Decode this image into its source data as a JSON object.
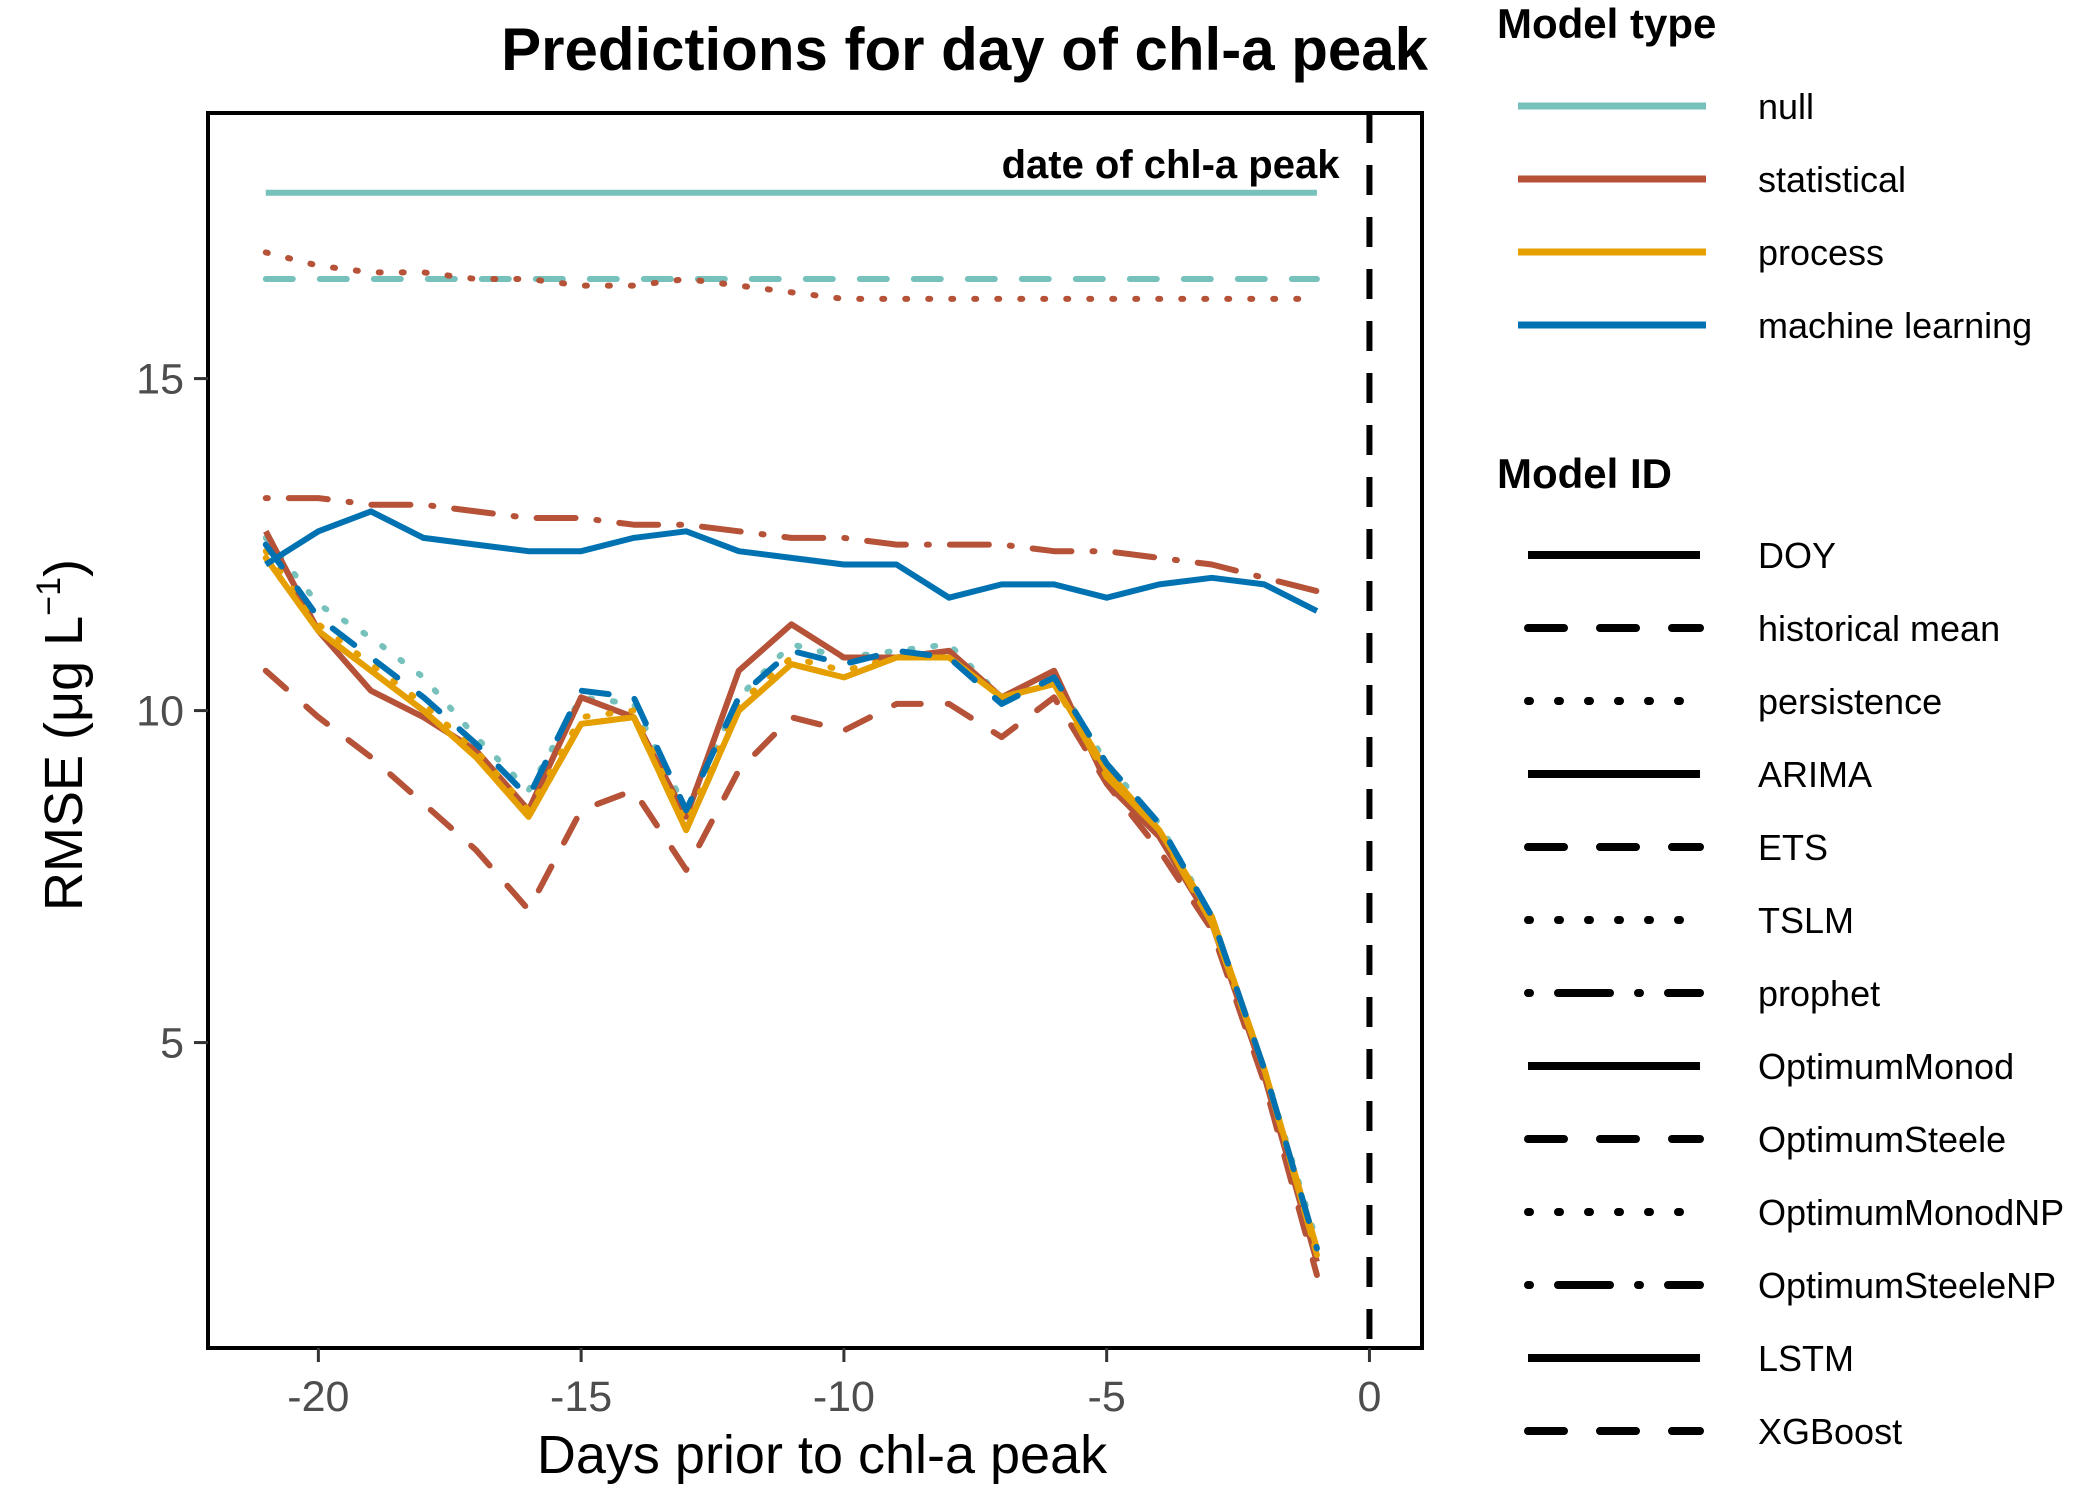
{
  "chart_data": {
    "type": "line",
    "title": "Predictions for day of chl-a peak",
    "xlabel": "Days prior to chl-a peak",
    "ylabel": "RMSE (μg L",
    "ylabel_exponent": "−1",
    "ylabel_close": ")",
    "xlim": [
      -22.1,
      1.0
    ],
    "ylim": [
      0.4,
      19.0
    ],
    "xticks": [
      -20,
      -15,
      -10,
      -5,
      0
    ],
    "xtick_labels": [
      "-20",
      "-15",
      "-10",
      "-5",
      "0"
    ],
    "yticks": [
      5,
      10,
      15
    ],
    "ytick_labels": [
      "5",
      "10",
      "15"
    ],
    "grid": false,
    "legend_position": "right",
    "annotation": {
      "text": "date of chl-a peak",
      "x": 0
    },
    "vline": {
      "x": 0,
      "linetype": "dashed",
      "color": "#000000"
    },
    "x": [
      -21,
      -20,
      -19,
      -18,
      -17,
      -16,
      -15,
      -14,
      -13,
      -12,
      -11,
      -10,
      -9,
      -8,
      -7,
      -6,
      -5,
      -4,
      -3,
      -2,
      -1
    ],
    "series": [
      {
        "name": "DOY",
        "type": "null",
        "color": "#76C1BB",
        "linetype": "solid",
        "values": [
          17.8,
          17.8,
          17.8,
          17.8,
          17.8,
          17.8,
          17.8,
          17.8,
          17.8,
          17.8,
          17.8,
          17.8,
          17.8,
          17.8,
          17.8,
          17.8,
          17.8,
          17.8,
          17.8,
          17.8,
          17.8
        ]
      },
      {
        "name": "historical mean",
        "type": "null",
        "color": "#76C1BB",
        "linetype": "dashed",
        "values": [
          16.5,
          16.5,
          16.5,
          16.5,
          16.5,
          16.5,
          16.5,
          16.5,
          16.5,
          16.5,
          16.5,
          16.5,
          16.5,
          16.5,
          16.5,
          16.5,
          16.5,
          16.5,
          16.5,
          16.5,
          16.5
        ]
      },
      {
        "name": "persistence",
        "type": "null",
        "color": "#76C1BB",
        "linetype": "dotted",
        "values": [
          12.6,
          11.6,
          11.1,
          10.5,
          9.6,
          8.8,
          10.2,
          10.1,
          8.5,
          10.2,
          11.0,
          10.8,
          10.9,
          11.0,
          10.2,
          10.5,
          9.2,
          8.3,
          6.9,
          4.6,
          2.0
        ]
      },
      {
        "name": "ARIMA",
        "type": "statistical",
        "color": "#B55237",
        "linetype": "solid",
        "values": [
          12.7,
          11.2,
          10.3,
          9.9,
          9.4,
          8.5,
          10.2,
          9.9,
          8.4,
          10.6,
          11.3,
          10.8,
          10.8,
          10.9,
          10.2,
          10.6,
          8.9,
          8.1,
          6.8,
          4.5,
          1.7
        ]
      },
      {
        "name": "ETS",
        "type": "statistical",
        "color": "#B55237",
        "linetype": "dashed",
        "values": [
          10.6,
          9.9,
          9.3,
          8.6,
          7.9,
          7.0,
          8.5,
          8.8,
          7.6,
          9.1,
          9.9,
          9.7,
          10.1,
          10.1,
          9.6,
          10.2,
          8.9,
          7.9,
          6.7,
          4.4,
          1.5
        ]
      },
      {
        "name": "TSLM",
        "type": "statistical",
        "color": "#B55237",
        "linetype": "dotted",
        "values": [
          16.9,
          16.7,
          16.6,
          16.6,
          16.5,
          16.5,
          16.4,
          16.4,
          16.5,
          16.4,
          16.3,
          16.2,
          16.2,
          16.2,
          16.2,
          16.2,
          16.2,
          16.2,
          16.2,
          16.2,
          16.2
        ]
      },
      {
        "name": "prophet",
        "type": "statistical",
        "color": "#B55237",
        "linetype": "dotdash",
        "values": [
          13.2,
          13.2,
          13.1,
          13.1,
          13.0,
          12.9,
          12.9,
          12.8,
          12.8,
          12.7,
          12.6,
          12.6,
          12.5,
          12.5,
          12.5,
          12.4,
          12.4,
          12.3,
          12.2,
          12.0,
          11.8
        ]
      },
      {
        "name": "OptimumMonod",
        "type": "process",
        "color": "#E69F00",
        "linetype": "solid",
        "values": [
          12.3,
          11.2,
          10.6,
          10.0,
          9.3,
          8.4,
          9.8,
          9.9,
          8.2,
          10.0,
          10.7,
          10.5,
          10.8,
          10.8,
          10.2,
          10.4,
          9.1,
          8.2,
          6.9,
          4.6,
          1.9
        ]
      },
      {
        "name": "OptimumSteele",
        "type": "process",
        "color": "#E69F00",
        "linetype": "dashed",
        "values": [
          12.3,
          11.2,
          10.6,
          10.0,
          9.3,
          8.4,
          9.8,
          9.9,
          8.2,
          10.0,
          10.7,
          10.5,
          10.8,
          10.8,
          10.2,
          10.4,
          9.0,
          8.2,
          6.8,
          4.6,
          1.8
        ]
      },
      {
        "name": "OptimumMonodNP",
        "type": "process",
        "color": "#E69F00",
        "linetype": "dotted",
        "values": [
          12.4,
          11.3,
          10.7,
          10.1,
          9.4,
          8.5,
          9.9,
          10.0,
          8.3,
          10.1,
          10.8,
          10.6,
          10.8,
          10.8,
          10.2,
          10.4,
          9.1,
          8.2,
          6.9,
          4.6,
          1.9
        ]
      },
      {
        "name": "OptimumSteeleNP",
        "type": "process",
        "color": "#E69F00",
        "linetype": "dotdash",
        "values": [
          12.3,
          11.2,
          10.6,
          10.0,
          9.3,
          8.4,
          9.8,
          9.9,
          8.2,
          10.0,
          10.7,
          10.5,
          10.8,
          10.8,
          10.2,
          10.4,
          9.0,
          8.2,
          6.8,
          4.6,
          1.8
        ]
      },
      {
        "name": "LSTM",
        "type": "machine learning",
        "color": "#0072B2",
        "linetype": "solid",
        "values": [
          12.2,
          12.7,
          13.0,
          12.6,
          12.5,
          12.4,
          12.4,
          12.6,
          12.7,
          12.4,
          12.3,
          12.2,
          12.2,
          11.7,
          11.9,
          11.9,
          11.7,
          11.9,
          12.0,
          11.9,
          11.5
        ]
      },
      {
        "name": "XGBoost",
        "type": "machine learning",
        "color": "#0072B2",
        "linetype": "dashed",
        "values": [
          12.5,
          11.4,
          10.8,
          10.2,
          9.5,
          8.7,
          10.3,
          10.2,
          8.5,
          10.2,
          10.9,
          10.7,
          10.9,
          10.8,
          10.1,
          10.5,
          9.2,
          8.3,
          6.9,
          4.6,
          1.9
        ]
      }
    ]
  },
  "legend": {
    "type_title": "Model type",
    "types": [
      {
        "label": "null",
        "color": "#76C1BB"
      },
      {
        "label": "statistical",
        "color": "#B55237"
      },
      {
        "label": "process",
        "color": "#E69F00"
      },
      {
        "label": "machine learning",
        "color": "#0072B2"
      }
    ],
    "id_title": "Model ID",
    "ids": [
      {
        "label": "DOY",
        "linetype": "solid"
      },
      {
        "label": "historical mean",
        "linetype": "dashed"
      },
      {
        "label": "persistence",
        "linetype": "dotted"
      },
      {
        "label": "ARIMA",
        "linetype": "solid"
      },
      {
        "label": "ETS",
        "linetype": "dashed"
      },
      {
        "label": "TSLM",
        "linetype": "dotted"
      },
      {
        "label": "prophet",
        "linetype": "dotdash"
      },
      {
        "label": "OptimumMonod",
        "linetype": "solid"
      },
      {
        "label": "OptimumSteele",
        "linetype": "dashed"
      },
      {
        "label": "OptimumMonodNP",
        "linetype": "dotted"
      },
      {
        "label": "OptimumSteeleNP",
        "linetype": "dotdash"
      },
      {
        "label": "LSTM",
        "linetype": "solid"
      },
      {
        "label": "XGBoost",
        "linetype": "dashed"
      }
    ]
  }
}
